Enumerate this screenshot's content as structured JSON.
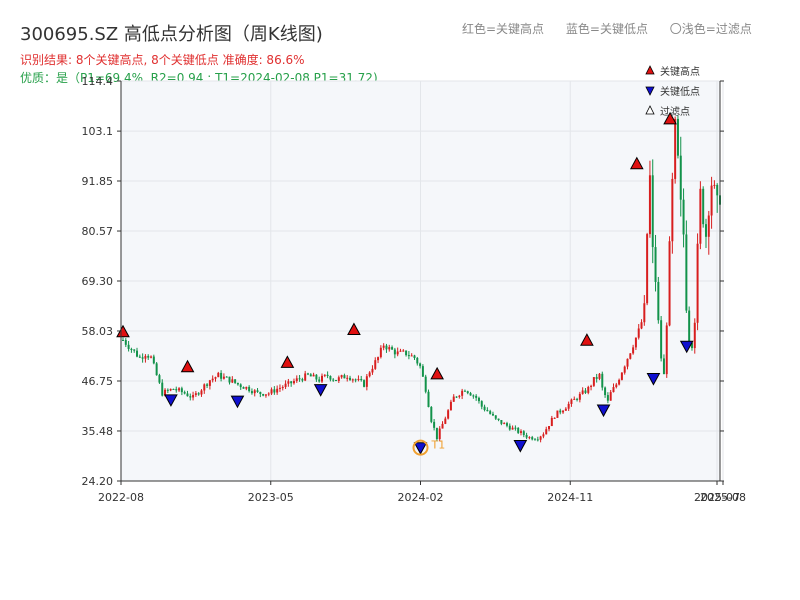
{
  "header": {
    "title": "300695.SZ 高低点分析图（周K线图)",
    "result_line": "识别结果: 8个关键高点, 8个关键低点  准确度: 86.6%",
    "quality_line": "优质：是（P1=69.4%, R2=0.94 ; T1=2024-02-08 P1=31.72)",
    "top_legend": [
      "红色=关键高点",
      "蓝色=关键低点",
      "〇浅色=过滤点"
    ]
  },
  "colors": {
    "up": "#d81e1e",
    "down": "#12924a",
    "high_marker": "#e01010",
    "low_marker": "#1010d0",
    "t1": "#f0a030",
    "grid": "#e3e6ea",
    "plot_bg": "#f5f7fa"
  },
  "chart_data": {
    "type": "candlestick",
    "ytick_labels": [
      "24.20",
      "35.48",
      "46.75",
      "58.03",
      "69.30",
      "80.57",
      "91.85",
      "103.1",
      "114.4"
    ],
    "ylim": [
      24.2,
      114.4
    ],
    "xtick_labels": [
      "2022-08",
      "2023-05",
      "2024-02",
      "2024-11",
      "2025-07",
      "2025-08"
    ],
    "x_range": [
      "2022-08",
      "2025-08"
    ],
    "grid": true,
    "legend": {
      "placement": "top-right",
      "entries": [
        "关键高点",
        "关键低点",
        "过滤点"
      ]
    },
    "key_highs": [
      {
        "date": "2022-08",
        "value": 56.5
      },
      {
        "date": "2022-12",
        "value": 48.6
      },
      {
        "date": "2023-06",
        "value": 49.6
      },
      {
        "date": "2023-10",
        "value": 57.0
      },
      {
        "date": "2024-03",
        "value": 47.0
      },
      {
        "date": "2024-12",
        "value": 54.6
      },
      {
        "date": "2025-03",
        "value": 94.4
      },
      {
        "date": "2025-05",
        "value": 104.5
      }
    ],
    "key_lows": [
      {
        "date": "2022-11",
        "value": 42.5
      },
      {
        "date": "2023-03",
        "value": 42.2
      },
      {
        "date": "2023-08",
        "value": 44.8
      },
      {
        "date": "2024-02",
        "value": 31.7
      },
      {
        "date": "2024-08",
        "value": 32.2
      },
      {
        "date": "2025-01",
        "value": 40.2
      },
      {
        "date": "2025-04",
        "value": 47.3
      },
      {
        "date": "2025-06",
        "value": 54.6
      }
    ],
    "t1_annotation": {
      "label": "T1",
      "date": "2024-02-08",
      "value": 31.72
    },
    "close_path": [
      [
        0,
        56
      ],
      [
        3,
        54
      ],
      [
        6,
        52
      ],
      [
        8,
        53
      ],
      [
        10,
        52
      ],
      [
        13,
        46
      ],
      [
        14,
        44
      ],
      [
        18,
        45
      ],
      [
        22,
        44
      ],
      [
        25,
        43
      ],
      [
        28,
        45
      ],
      [
        31,
        47
      ],
      [
        34,
        48
      ],
      [
        38,
        47
      ],
      [
        41,
        46
      ],
      [
        45,
        45
      ],
      [
        48,
        44
      ],
      [
        52,
        44
      ],
      [
        55,
        45
      ],
      [
        59,
        46
      ],
      [
        62,
        47
      ],
      [
        66,
        48
      ],
      [
        70,
        47
      ],
      [
        73,
        48
      ],
      [
        76,
        47
      ],
      [
        80,
        48
      ],
      [
        83,
        47
      ],
      [
        86,
        46
      ],
      [
        88,
        49
      ],
      [
        91,
        52
      ],
      [
        93,
        55
      ],
      [
        95,
        54
      ],
      [
        98,
        53
      ],
      [
        101,
        53
      ],
      [
        104,
        52
      ],
      [
        106,
        50
      ],
      [
        108,
        45
      ],
      [
        110,
        38
      ],
      [
        112,
        34
      ],
      [
        114,
        37
      ],
      [
        116,
        40
      ],
      [
        118,
        43
      ],
      [
        120,
        44
      ],
      [
        122,
        45
      ],
      [
        124,
        44
      ],
      [
        126,
        43
      ],
      [
        128,
        41
      ],
      [
        130,
        40
      ],
      [
        133,
        38
      ],
      [
        136,
        37
      ],
      [
        139,
        36
      ],
      [
        142,
        35
      ],
      [
        145,
        34
      ],
      [
        148,
        34
      ],
      [
        150,
        35
      ],
      [
        152,
        37
      ],
      [
        154,
        39
      ],
      [
        156,
        40
      ],
      [
        158,
        41
      ],
      [
        160,
        42
      ],
      [
        162,
        43
      ],
      [
        164,
        44
      ],
      [
        166,
        45
      ],
      [
        168,
        47
      ],
      [
        170,
        48
      ],
      [
        171,
        45
      ],
      [
        173,
        42
      ],
      [
        174,
        44
      ],
      [
        176,
        46
      ],
      [
        178,
        49
      ],
      [
        180,
        52
      ],
      [
        182,
        55
      ],
      [
        184,
        58
      ],
      [
        186,
        62
      ],
      [
        187,
        80
      ],
      [
        188,
        92
      ],
      [
        189,
        75
      ],
      [
        190,
        70
      ],
      [
        191,
        60
      ],
      [
        192,
        52
      ],
      [
        193,
        48
      ],
      [
        194,
        60
      ],
      [
        195,
        75
      ],
      [
        196,
        90
      ],
      [
        197,
        102
      ],
      [
        198,
        95
      ],
      [
        199,
        85
      ],
      [
        200,
        80
      ],
      [
        201,
        65
      ],
      [
        202,
        56
      ],
      [
        203,
        55
      ],
      [
        204,
        62
      ],
      [
        205,
        75
      ],
      [
        206,
        88
      ],
      [
        207,
        85
      ],
      [
        208,
        80
      ],
      [
        209,
        88
      ],
      [
        210,
        92
      ],
      [
        211,
        88
      ],
      [
        212,
        85
      ],
      [
        213,
        90
      ]
    ]
  }
}
